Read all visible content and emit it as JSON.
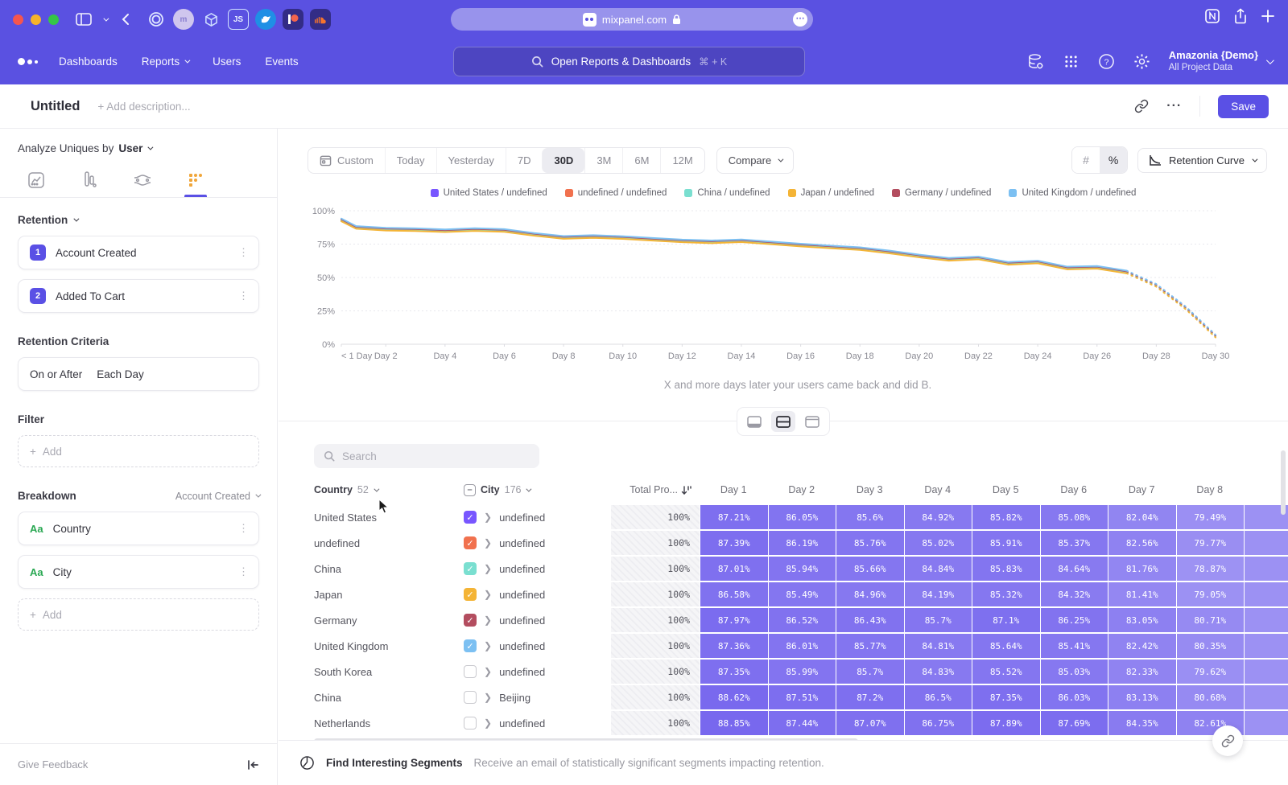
{
  "browser": {
    "url": "mixpanel.com",
    "extension_icons": [
      "target-icon",
      "m-avatar-icon",
      "cube-icon",
      "js-icon",
      "bird-icon",
      "patreon-icon",
      "soundcloud-icon"
    ]
  },
  "nav": {
    "items": [
      "Dashboards",
      "Reports",
      "Users",
      "Events"
    ],
    "dropdown_items": [
      "Reports"
    ],
    "search_placeholder": "Open Reports & Dashboards",
    "search_shortcut": "⌘ + K",
    "project_name": "Amazonia {Demo}",
    "project_scope": "All Project Data"
  },
  "report_header": {
    "title": "Untitled",
    "description_placeholder": "+ Add description...",
    "save_label": "Save"
  },
  "sidebar": {
    "analyze_label": "Analyze Uniques by",
    "analyze_value": "User",
    "retention_label": "Retention",
    "steps": [
      {
        "num": "1",
        "label": "Account Created"
      },
      {
        "num": "2",
        "label": "Added To Cart"
      }
    ],
    "criteria_label": "Retention Criteria",
    "criteria_value_1": "On or After",
    "criteria_value_2": "Each Day",
    "filter_label": "Filter",
    "add_label": "Add",
    "breakdown_label": "Breakdown",
    "breakdown_event": "Account Created",
    "breakdowns": [
      {
        "type": "Aa",
        "label": "Country"
      },
      {
        "type": "Aa",
        "label": "City"
      }
    ],
    "give_feedback": "Give Feedback"
  },
  "toolbar": {
    "ranges": [
      "Custom",
      "Today",
      "Yesterday",
      "7D",
      "30D",
      "3M",
      "6M",
      "12M"
    ],
    "selected_range": "30D",
    "compare_label": "Compare",
    "unit_options": [
      "#",
      "%"
    ],
    "selected_unit": "%",
    "chart_type_label": "Retention Curve"
  },
  "chart_data": {
    "type": "line",
    "caption": "X and more days later your users came back and did B.",
    "ylim": [
      0,
      100
    ],
    "xlim": [
      0.5,
      30
    ],
    "y_ticks": [
      100,
      75,
      50,
      25,
      0
    ],
    "y_tick_labels": [
      "100%",
      "75%",
      "50%",
      "25%",
      "0%"
    ],
    "x_tick_positions": [
      0.5,
      2,
      4,
      6,
      8,
      10,
      12,
      14,
      16,
      18,
      20,
      22,
      24,
      26,
      28,
      30
    ],
    "x_tick_labels": [
      "< 1 Day",
      "Day 2",
      "Day 4",
      "Day 6",
      "Day 8",
      "Day 10",
      "Day 12",
      "Day 14",
      "Day 16",
      "Day 18",
      "Day 20",
      "Day 22",
      "Day 24",
      "Day 26",
      "Day 28",
      "Day 30"
    ],
    "x": [
      0.5,
      1,
      2,
      3,
      4,
      5,
      6,
      7,
      8,
      9,
      10,
      11,
      12,
      13,
      14,
      15,
      16,
      17,
      18,
      19,
      20,
      21,
      22,
      23,
      24,
      25,
      26,
      27,
      28,
      29,
      30
    ],
    "dashed_from_x": 27,
    "grid": true,
    "legend_position": "top",
    "series": [
      {
        "name": "United States / undefined",
        "color": "#7856ff",
        "values": [
          93,
          87.4,
          86.1,
          85.7,
          84.9,
          85.8,
          85.1,
          82.2,
          79.9,
          80.6,
          79.8,
          78.5,
          77.3,
          76.6,
          77.4,
          75.8,
          74.2,
          72.8,
          71.5,
          69,
          66,
          63.5,
          64.5,
          60.5,
          61.5,
          57,
          57.5,
          54,
          44,
          27,
          6
        ]
      },
      {
        "name": "undefined / undefined",
        "color": "#f1714e",
        "values": [
          93.2,
          87.6,
          86.3,
          85.9,
          85.1,
          86,
          85.3,
          82.4,
          80.1,
          80.8,
          80,
          78.7,
          77.5,
          76.8,
          77.6,
          76,
          74.4,
          73,
          71.7,
          69.2,
          66.2,
          63.7,
          64.7,
          60.7,
          61.7,
          57.2,
          57.7,
          54.2,
          44.2,
          27.2,
          6.2
        ]
      },
      {
        "name": "China / undefined",
        "color": "#7adfd0",
        "values": [
          92.6,
          87,
          85.7,
          85.3,
          84.5,
          85.4,
          84.7,
          81.8,
          79.5,
          80.2,
          79.4,
          78.1,
          76.9,
          76.2,
          77,
          75.4,
          73.8,
          72.4,
          71.1,
          68.6,
          65.6,
          63.1,
          64.1,
          60.1,
          61.1,
          56.6,
          57.1,
          53.6,
          43.6,
          26.6,
          5.6
        ]
      },
      {
        "name": "Japan / undefined",
        "color": "#f4b436",
        "values": [
          92.1,
          86.5,
          85.2,
          84.8,
          84,
          84.9,
          84.2,
          81.3,
          79,
          79.7,
          78.9,
          77.6,
          76.4,
          75.7,
          76.5,
          74.9,
          73.3,
          71.9,
          70.6,
          68.1,
          65.1,
          62.6,
          63.6,
          59.6,
          60.6,
          56.1,
          56.6,
          53.1,
          43.1,
          26.1,
          5.1
        ]
      },
      {
        "name": "Germany / undefined",
        "color": "#b34d5f",
        "values": [
          93.6,
          88,
          86.7,
          86.3,
          85.5,
          86.4,
          85.7,
          82.8,
          80.5,
          81.2,
          80.4,
          79.1,
          77.9,
          77.2,
          78,
          76.4,
          74.8,
          73.4,
          72.1,
          69.6,
          66.6,
          64.1,
          65.1,
          61.1,
          62.1,
          57.6,
          58.1,
          54.6,
          44.6,
          27.6,
          6.6
        ]
      },
      {
        "name": "United Kingdom / undefined",
        "color": "#7cc0f2",
        "values": [
          94.1,
          88.5,
          87.2,
          86.8,
          86,
          86.9,
          86.2,
          83.3,
          81,
          81.7,
          80.9,
          79.6,
          78.4,
          77.7,
          78.5,
          76.9,
          75.3,
          73.9,
          72.6,
          70.1,
          67.1,
          64.6,
          65.6,
          61.6,
          62.6,
          58.1,
          58.6,
          55.1,
          45.1,
          28.1,
          7.1
        ]
      }
    ]
  },
  "view_toggle_options": [
    "chart-only",
    "split",
    "table-only"
  ],
  "view_toggle_selected": "split",
  "table": {
    "search_placeholder": "Search",
    "country_header": "Country",
    "country_count": "52",
    "city_header": "City",
    "city_count": "176",
    "total_header": "Total Pro...",
    "day_headers": [
      "Day 1",
      "Day 2",
      "Day 3",
      "Day 4",
      "Day 5",
      "Day 6",
      "Day 7",
      "Day 8"
    ],
    "total_value": "100%",
    "rows": [
      {
        "country": "United States",
        "checked": true,
        "color": "#7856ff",
        "city": "undefined",
        "days": [
          "87.21%",
          "86.05%",
          "85.6%",
          "84.92%",
          "85.82%",
          "85.08%",
          "82.04%",
          "79.49%"
        ]
      },
      {
        "country": "undefined",
        "checked": true,
        "color": "#f1714e",
        "city": "undefined",
        "days": [
          "87.39%",
          "86.19%",
          "85.76%",
          "85.02%",
          "85.91%",
          "85.37%",
          "82.56%",
          "79.77%"
        ]
      },
      {
        "country": "China",
        "checked": true,
        "color": "#7adfd0",
        "city": "undefined",
        "days": [
          "87.01%",
          "85.94%",
          "85.66%",
          "84.84%",
          "85.83%",
          "84.64%",
          "81.76%",
          "78.87%"
        ]
      },
      {
        "country": "Japan",
        "checked": true,
        "color": "#f4b436",
        "city": "undefined",
        "days": [
          "86.58%",
          "85.49%",
          "84.96%",
          "84.19%",
          "85.32%",
          "84.32%",
          "81.41%",
          "79.05%"
        ]
      },
      {
        "country": "Germany",
        "checked": true,
        "color": "#b34d5f",
        "city": "undefined",
        "days": [
          "87.97%",
          "86.52%",
          "86.43%",
          "85.7%",
          "87.1%",
          "86.25%",
          "83.05%",
          "80.71%"
        ]
      },
      {
        "country": "United Kingdom",
        "checked": true,
        "color": "#7cc0f2",
        "city": "undefined",
        "days": [
          "87.36%",
          "86.01%",
          "85.77%",
          "84.81%",
          "85.64%",
          "85.41%",
          "82.42%",
          "80.35%"
        ]
      },
      {
        "country": "South Korea",
        "checked": false,
        "color": null,
        "city": "undefined",
        "days": [
          "87.35%",
          "85.99%",
          "85.7%",
          "84.83%",
          "85.52%",
          "85.03%",
          "82.33%",
          "79.62%"
        ]
      },
      {
        "country": "China",
        "checked": false,
        "color": null,
        "city": "Beijing",
        "days": [
          "88.62%",
          "87.51%",
          "87.2%",
          "86.5%",
          "87.35%",
          "86.03%",
          "83.13%",
          "80.68%"
        ]
      },
      {
        "country": "Netherlands",
        "checked": false,
        "color": null,
        "city": "undefined",
        "days": [
          "88.85%",
          "87.44%",
          "87.07%",
          "86.75%",
          "87.89%",
          "87.69%",
          "84.35%",
          "82.61%"
        ]
      }
    ]
  },
  "footer": {
    "title": "Find Interesting Segments",
    "description": "Receive an email of statistically significant segments impacting retention."
  }
}
